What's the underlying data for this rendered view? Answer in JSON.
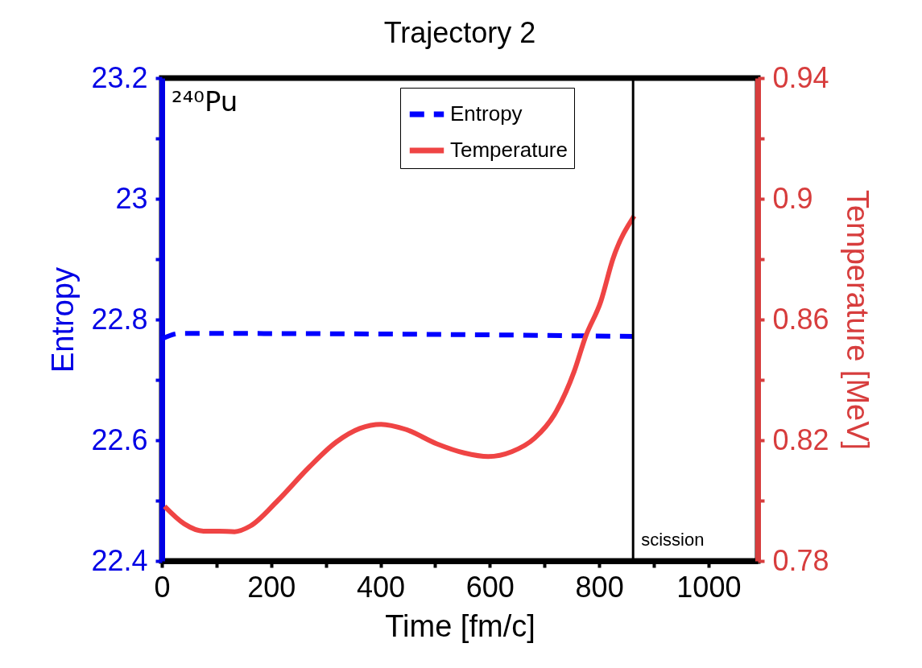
{
  "chart_data": {
    "type": "line",
    "title": "Trajectory 2",
    "xlabel": "Time [fm/c]",
    "ylabel": "Entropy",
    "y2label": "Temperature [MeV]",
    "xlim": [
      0,
      1090
    ],
    "xticks": [
      0,
      {
        "value": 100,
        "label": null
      },
      200,
      {
        "value": 300,
        "label": null
      },
      400,
      {
        "value": 500,
        "label": null
      },
      600,
      {
        "value": 700,
        "label": null
      },
      800,
      {
        "value": 900,
        "label": null
      },
      1000
    ],
    "ylim": [
      22.4,
      23.2
    ],
    "yticks": [
      22.4,
      {
        "value": 22.5,
        "label": null
      },
      22.6,
      {
        "value": 22.7,
        "label": null
      },
      22.8,
      {
        "value": 22.9,
        "label": null
      },
      23,
      {
        "value": 23.1,
        "label": null
      },
      23.2
    ],
    "y2lim": [
      0.78,
      0.94
    ],
    "y2ticks": [
      0.78,
      {
        "value": 0.8,
        "label": null
      },
      0.82,
      {
        "value": 0.84,
        "label": null
      },
      0.86,
      {
        "value": 0.88,
        "label": null
      },
      0.9,
      {
        "value": 0.92,
        "label": null
      },
      0.94
    ],
    "grid": false,
    "legend": "top",
    "annotations": [
      "²⁴⁰Pu"
    ],
    "ref_lines": [
      {
        "axis": "x",
        "value": 862,
        "label": "scission",
        "color": "#000000"
      }
    ],
    "series": [
      {
        "name": "Entropy",
        "color": "#0000ff",
        "line_style": "dashed",
        "x": [
          0,
          34,
          400,
          862
        ],
        "values": [
          22.768,
          22.777,
          22.776,
          22.772
        ]
      },
      {
        "name": "Temperature",
        "color": "#ef4444",
        "line_style": "solid",
        "axis": "y2",
        "x": [
          5,
          41,
          76,
          105,
          133,
          162,
          212,
          269,
          319,
          362,
          401,
          446,
          503,
          553,
          597,
          640,
          682,
          718,
          754,
          775,
          803,
          825,
          864
        ],
        "values": [
          0.7981,
          0.7923,
          0.7899,
          0.7899,
          0.7897,
          0.7916,
          0.8,
          0.811,
          0.8194,
          0.8239,
          0.8253,
          0.8236,
          0.8188,
          0.8158,
          0.8146,
          0.8162,
          0.8207,
          0.8285,
          0.8427,
          0.8543,
          0.866,
          0.88,
          0.8943
        ]
      }
    ]
  }
}
